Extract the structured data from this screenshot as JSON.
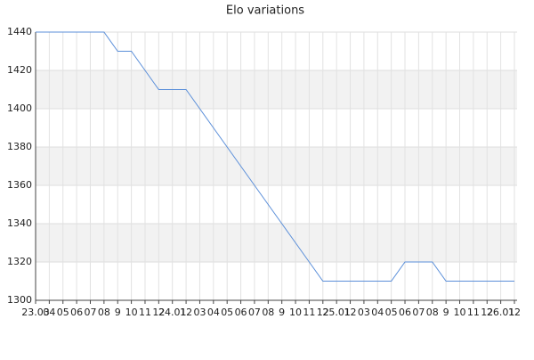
{
  "chart_data": {
    "type": "line",
    "title": "Elo variations",
    "categories": [
      "23.03",
      "04",
      "05",
      "06",
      "07",
      "08",
      "9",
      "10",
      "11",
      "12",
      "24.01",
      "12",
      "03",
      "04",
      "05",
      "06",
      "07",
      "08",
      "9",
      "10",
      "11",
      "12",
      "25.01",
      "12",
      "03",
      "04",
      "05",
      "06",
      "07",
      "08",
      "9",
      "10",
      "11",
      "12",
      "26.01",
      "12"
    ],
    "series": [
      {
        "name": "Elo",
        "color": "#5b8fd9",
        "values": [
          1440,
          1440,
          1440,
          1440,
          1440,
          1440,
          1430,
          1430,
          1420,
          1410,
          1410,
          1410,
          1400,
          1390,
          1380,
          1370,
          1360,
          1350,
          1340,
          1330,
          1320,
          1310,
          1310,
          1310,
          1310,
          1310,
          1310,
          1320,
          1320,
          1320,
          1310,
          1310,
          1310,
          1310,
          1310,
          1310
        ]
      }
    ],
    "ylim": [
      1300,
      1440
    ],
    "yticks": [
      1300,
      1320,
      1340,
      1360,
      1380,
      1400,
      1420,
      1440
    ],
    "grid": true
  }
}
